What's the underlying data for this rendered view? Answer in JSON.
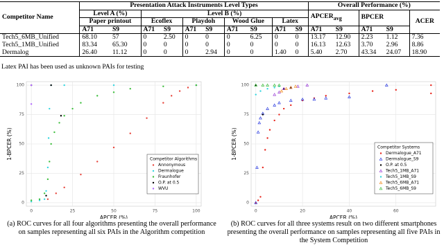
{
  "table": {
    "header": {
      "competitor": "Competitor Name",
      "pai": "Presentation Attack Instruments Level Types",
      "overall": "Overall Performance (%)",
      "level_a": "Level A (%)",
      "level_b": "Level B (%)",
      "apcer": "APCER",
      "apcer_sub": "avg",
      "bpcer": "BPCER",
      "acer": "ACER",
      "pais": [
        "Paper printout",
        "Ecoflex",
        "Playdoh",
        "Wood Glue",
        "Latex"
      ],
      "devices": [
        "A71",
        "S9",
        "A71",
        "S9",
        "A71",
        "S9",
        "A71",
        "S9",
        "A71",
        "S9",
        "A71",
        "S9",
        "A71",
        "S9"
      ]
    },
    "rows": [
      [
        "Tech5_6MB_Unified",
        "68.10",
        "57",
        "0",
        "2.50",
        "0",
        "0",
        "0",
        "6.25",
        "0",
        "0",
        "13.17",
        "12.90",
        "2.23",
        "1.12",
        "7.36"
      ],
      [
        "Tech5_1MB_Unified",
        "83.34",
        "65.30",
        "0",
        "0",
        "0",
        "0",
        "0",
        "0",
        "0",
        "0",
        "16.13",
        "12.63",
        "3.70",
        "2.96",
        "8.86"
      ],
      [
        "Dermalog",
        "26.40",
        "11.12",
        "0",
        "0",
        "0",
        "2.94",
        "0",
        "0",
        "1.40",
        "0",
        "5.40",
        "2.70",
        "43.34",
        "24.07",
        "18.90"
      ]
    ],
    "note": "Latex PAI has been used as unknown PAIs for testing"
  },
  "chart_data": [
    {
      "type": "scatter",
      "xlabel": "APCER (%)",
      "ylabel": "1-BPCER (%)",
      "xlim": [
        -3,
        103
      ],
      "ylim": [
        -3,
        103
      ],
      "xticks": [
        0,
        25,
        50,
        75,
        100
      ],
      "yticks": [
        0,
        25,
        50,
        75,
        100
      ],
      "grid": true,
      "legend_title": "Competitor Algorithms",
      "legend": "lower right",
      "caption": "(a) ROC curves for all four algorithms presenting the overall performance on samples representing all six PAIs in the Algorithm competition",
      "series": [
        {
          "name": "Annonymous",
          "color": "#e8453c",
          "marker": "circle",
          "x": [
            10,
            15,
            20,
            30,
            40,
            50,
            60,
            70,
            80,
            85,
            90,
            95,
            100
          ],
          "values": [
            3,
            8,
            13,
            24,
            35,
            47,
            59,
            72,
            85,
            91,
            95,
            98,
            100
          ]
        },
        {
          "name": "Dermalogue",
          "color": "#33d6e0",
          "marker": "circle",
          "x": [
            0,
            5,
            8,
            9,
            10,
            10.5,
            11,
            12,
            20,
            50,
            100
          ],
          "values": [
            1,
            2,
            3,
            10,
            30,
            55,
            80,
            100,
            100,
            100,
            100
          ]
        },
        {
          "name": "Fraunhofer",
          "color": "#3fbf3f",
          "marker": "circle",
          "x": [
            0,
            5,
            8,
            10,
            11,
            12,
            14,
            17,
            20,
            25,
            30,
            40,
            50,
            60,
            80,
            100
          ],
          "values": [
            2,
            3,
            8,
            20,
            35,
            50,
            60,
            68,
            74,
            80,
            85,
            91,
            94,
            97,
            99,
            100
          ]
        },
        {
          "name": "O.P. at 0.5",
          "color": "#000000",
          "marker": "circle",
          "x": [
            0,
            12,
            18,
            9
          ],
          "values": [
            100,
            100,
            74,
            6
          ]
        },
        {
          "name": "WVU",
          "color": "#b266ff",
          "marker": "circle",
          "x": [
            0,
            0
          ],
          "values": [
            84,
            100
          ]
        }
      ]
    },
    {
      "type": "scatter",
      "xlabel": "APCER (%)",
      "ylabel": "1-BPCER (%)",
      "xlim": [
        -2,
        77
      ],
      "ylim": [
        -3,
        103
      ],
      "xticks": [
        0,
        20,
        40,
        60
      ],
      "yticks": [
        0,
        25,
        50,
        75,
        100
      ],
      "grid": true,
      "legend_title": "Competitor Systems",
      "legend": "lower right",
      "caption": "(b) ROC curves for all three systems result on two different smartphones presenting the overall performance on samples representing all five PAIs in the System Competition",
      "series": [
        {
          "name": "Dermalogue_A71",
          "color": "#e8251c",
          "marker": "circle",
          "x": [
            0,
            1,
            2,
            3,
            4,
            5,
            6,
            8,
            10,
            12,
            15,
            20,
            25,
            30,
            40,
            50,
            60,
            75,
            75
          ],
          "values": [
            0,
            2,
            5,
            30,
            45,
            55,
            62,
            70,
            75,
            80,
            83,
            87,
            89,
            91,
            93,
            95,
            96,
            100,
            93
          ]
        },
        {
          "name": "Dermalogue_S9",
          "color": "#2f3fe0",
          "marker": "triangle",
          "x": [
            0,
            0.5,
            1,
            1.5,
            2,
            3,
            5,
            8,
            10,
            15,
            20,
            25,
            30,
            40,
            56
          ],
          "values": [
            0,
            30,
            60,
            68,
            72,
            76,
            80,
            83,
            85,
            87,
            88,
            88,
            89,
            90,
            100
          ]
        },
        {
          "name": "O.P. at 0.5",
          "color": "#000000",
          "marker": "circle",
          "x": [
            3,
            12,
            15,
            0
          ],
          "values": [
            75,
            97,
            98,
            100
          ]
        },
        {
          "name": "Tech5_1MB_A71",
          "color": "#9b3fd6",
          "marker": "triangle",
          "x": [
            8,
            10,
            12,
            15,
            18,
            22
          ],
          "values": [
            92,
            94,
            97,
            98,
            99,
            100
          ]
        },
        {
          "name": "Tech5_1MB_S9",
          "color": "#33d6e0",
          "marker": "circle",
          "x": [
            0,
            2,
            5,
            8,
            10
          ],
          "values": [
            92,
            95,
            97,
            98,
            99
          ]
        },
        {
          "name": "Tech5_6MB_A71",
          "color": "#f28c1f",
          "marker": "triangle",
          "x": [
            11,
            13,
            15,
            17
          ],
          "values": [
            95,
            97,
            98,
            99
          ]
        },
        {
          "name": "Tech5_6MB_S9",
          "color": "#3fbf3f",
          "marker": "triangle",
          "x": [
            0,
            3,
            5,
            8,
            10
          ],
          "values": [
            100,
            100,
            100,
            100,
            100
          ]
        }
      ]
    }
  ]
}
